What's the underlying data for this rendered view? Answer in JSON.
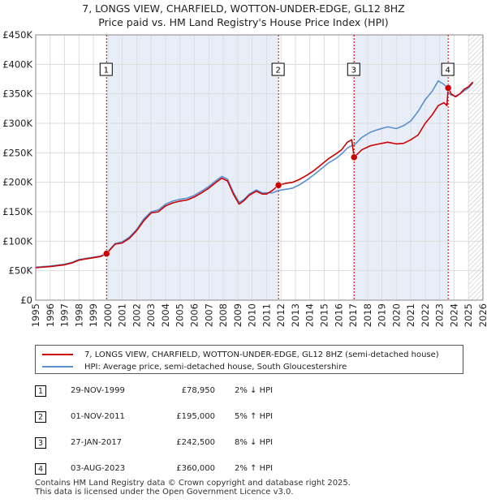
{
  "title": "7, LONGS VIEW, CHARFIELD, WOTTON-UNDER-EDGE, GL12 8HZ",
  "subtitle": "Price paid vs. HM Land Registry's House Price Index (HPI)",
  "colors": {
    "price": "#cc0000",
    "hpi": "#5b8fd0",
    "shade": "#e8eef8",
    "marker_line": "#cc0000"
  },
  "chart_data": {
    "type": "line",
    "ylim": [
      0,
      450000
    ],
    "xlim": [
      1995,
      2026
    ],
    "y_ticks": [
      {
        "value": 0,
        "label": "£0"
      },
      {
        "value": 50000,
        "label": "£50K"
      },
      {
        "value": 100000,
        "label": "£100K"
      },
      {
        "value": 150000,
        "label": "£150K"
      },
      {
        "value": 200000,
        "label": "£200K"
      },
      {
        "value": 250000,
        "label": "£250K"
      },
      {
        "value": 300000,
        "label": "£300K"
      },
      {
        "value": 350000,
        "label": "£350K"
      },
      {
        "value": 400000,
        "label": "£400K"
      },
      {
        "value": 450000,
        "label": "£450K"
      }
    ],
    "x_ticks": [
      "1995",
      "1996",
      "1997",
      "1998",
      "1999",
      "2000",
      "2001",
      "2002",
      "2003",
      "2004",
      "2005",
      "2006",
      "2007",
      "2008",
      "2009",
      "2010",
      "2011",
      "2012",
      "2013",
      "2014",
      "2015",
      "2016",
      "2017",
      "2018",
      "2019",
      "2020",
      "2021",
      "2022",
      "2023",
      "2024",
      "2025",
      "2026"
    ],
    "shaded_ranges": [
      [
        1999.91,
        2011.83
      ],
      [
        2017.07,
        2023.59
      ]
    ],
    "future_hatch_from": 2025.0,
    "grid": true,
    "series": [
      {
        "name": "7, LONGS VIEW, CHARFIELD, WOTTON-UNDER-EDGE, GL12 8HZ (semi-detached house)",
        "color": "#cc0000",
        "x": [
          1995.0,
          1996.0,
          1997.0,
          1997.5,
          1998.0,
          1998.5,
          1999.0,
          1999.5,
          1999.91,
          2000.5,
          2001.0,
          2001.5,
          2002.0,
          2002.5,
          2003.0,
          2003.5,
          2004.0,
          2004.5,
          2005.0,
          2005.5,
          2006.0,
          2006.5,
          2007.0,
          2007.5,
          2007.9,
          2008.3,
          2008.7,
          2009.1,
          2009.4,
          2009.8,
          2010.3,
          2010.7,
          2011.0,
          2011.4,
          2011.83,
          2012.3,
          2012.8,
          2013.3,
          2013.8,
          2014.3,
          2014.8,
          2015.3,
          2015.8,
          2016.2,
          2016.6,
          2016.9,
          2017.07,
          2017.6,
          2018.2,
          2018.8,
          2019.4,
          2020.0,
          2020.5,
          2021.0,
          2021.5,
          2022.0,
          2022.5,
          2022.9,
          2023.3,
          2023.5,
          2023.59,
          2023.8,
          2024.1,
          2024.4,
          2024.7,
          2025.0,
          2025.3
        ],
        "y": [
          55000,
          57000,
          60000,
          63000,
          68000,
          70000,
          72000,
          74000,
          78950,
          95000,
          97000,
          105000,
          118000,
          135000,
          148000,
          150000,
          160000,
          165000,
          168000,
          170000,
          175000,
          182000,
          190000,
          200000,
          207000,
          202000,
          180000,
          163000,
          168000,
          178000,
          185000,
          180000,
          180000,
          186000,
          195000,
          198000,
          200000,
          205000,
          212000,
          220000,
          230000,
          240000,
          248000,
          255000,
          268000,
          272000,
          242500,
          255000,
          262000,
          265000,
          268000,
          265000,
          266000,
          272000,
          280000,
          300000,
          315000,
          330000,
          335000,
          330000,
          360000,
          350000,
          345000,
          350000,
          358000,
          362000,
          370000
        ]
      },
      {
        "name": "HPI: Average price, semi-detached house, South Gloucestershire",
        "color": "#5b8fd0",
        "x": [
          1995.0,
          1996.0,
          1997.0,
          1997.5,
          1998.0,
          1998.5,
          1999.0,
          1999.5,
          1999.91,
          2000.5,
          2001.0,
          2001.5,
          2002.0,
          2002.5,
          2003.0,
          2003.5,
          2004.0,
          2004.5,
          2005.0,
          2005.5,
          2006.0,
          2006.5,
          2007.0,
          2007.5,
          2007.9,
          2008.3,
          2008.7,
          2009.1,
          2009.4,
          2009.8,
          2010.3,
          2010.7,
          2011.0,
          2011.4,
          2011.83,
          2012.3,
          2012.8,
          2013.3,
          2013.8,
          2014.3,
          2014.8,
          2015.3,
          2015.8,
          2016.2,
          2016.6,
          2016.9,
          2017.07,
          2017.6,
          2018.2,
          2018.8,
          2019.4,
          2020.0,
          2020.5,
          2021.0,
          2021.5,
          2022.0,
          2022.5,
          2022.9,
          2023.3,
          2023.5,
          2023.59,
          2023.8,
          2024.1,
          2024.4,
          2024.7,
          2025.0,
          2025.3
        ],
        "y": [
          56000,
          58000,
          61000,
          64000,
          69000,
          71000,
          73000,
          75000,
          80000,
          96000,
          99000,
          107000,
          120000,
          138000,
          150000,
          153000,
          163000,
          168000,
          171000,
          173000,
          178000,
          185000,
          193000,
          203000,
          210000,
          205000,
          183000,
          166000,
          170000,
          180000,
          187000,
          182000,
          182000,
          182000,
          186000,
          188000,
          190000,
          196000,
          204000,
          213000,
          223000,
          233000,
          240000,
          248000,
          258000,
          262000,
          263000,
          276000,
          285000,
          290000,
          294000,
          291000,
          296000,
          304000,
          320000,
          340000,
          355000,
          372000,
          366000,
          360000,
          352000,
          348000,
          346000,
          350000,
          355000,
          360000,
          368000
        ]
      }
    ],
    "sales": [
      {
        "label": "1",
        "x": 1999.91,
        "y": 78950
      },
      {
        "label": "2",
        "x": 2011.83,
        "y": 195000
      },
      {
        "label": "3",
        "x": 2017.07,
        "y": 242500
      },
      {
        "label": "4",
        "x": 2023.59,
        "y": 360000
      }
    ]
  },
  "legend": {
    "price_label": "7, LONGS VIEW, CHARFIELD, WOTTON-UNDER-EDGE, GL12 8HZ (semi-detached house)",
    "hpi_label": "HPI: Average price, semi-detached house, South Gloucestershire"
  },
  "sales_table": [
    {
      "num": "1",
      "date": "29-NOV-1999",
      "price": "£78,950",
      "hpi": "2% ↓ HPI"
    },
    {
      "num": "2",
      "date": "01-NOV-2011",
      "price": "£195,000",
      "hpi": "5% ↑ HPI"
    },
    {
      "num": "3",
      "date": "27-JAN-2017",
      "price": "£242,500",
      "hpi": "8% ↓ HPI"
    },
    {
      "num": "4",
      "date": "03-AUG-2023",
      "price": "£360,000",
      "hpi": "2% ↑ HPI"
    }
  ],
  "footer": {
    "line1": "Contains HM Land Registry data © Crown copyright and database right 2025.",
    "line2": "This data is licensed under the Open Government Licence v3.0."
  }
}
